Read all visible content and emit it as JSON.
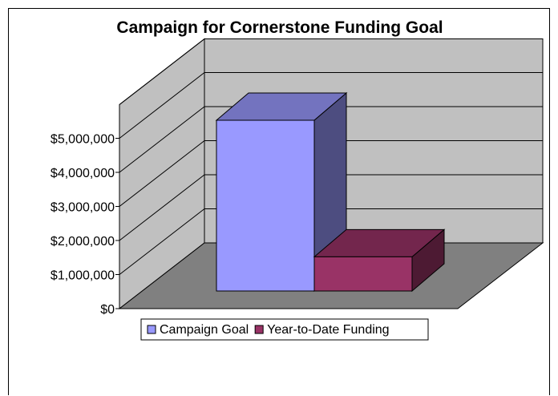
{
  "chart_data": {
    "type": "bar",
    "view": "3d",
    "title": "Campaign for Cornerstone Funding Goal",
    "xlabel": "",
    "ylabel": "",
    "y_tick_labels": [
      "$0",
      "$1,000,000",
      "$2,000,000",
      "$3,000,000",
      "$4,000,000",
      "$5,000,000"
    ],
    "ylim": [
      0,
      5000000
    ],
    "grid": true,
    "legend_position": "bottom",
    "series": [
      {
        "name": "Campaign Goal",
        "value": 5000000,
        "color": "#9999FF"
      },
      {
        "name": "Year-to-Date Funding",
        "value": 1000000,
        "color": "#993366"
      }
    ],
    "colors": {
      "wall": "#C0C0C0",
      "floor": "#808080",
      "gridline": "#000000"
    }
  }
}
